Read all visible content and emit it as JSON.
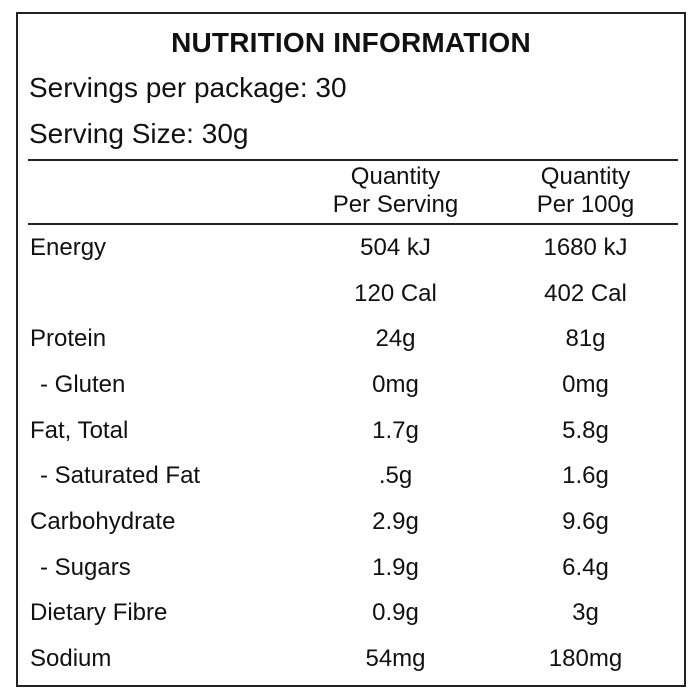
{
  "label": {
    "title": "NUTRITION INFORMATION",
    "servings_per_package": "Servings per package: 30",
    "serving_size": "Serving Size: 30g",
    "columns": [
      {
        "line1": "Quantity",
        "line2": "Per Serving"
      },
      {
        "line1": "Quantity",
        "line2": "Per 100g"
      }
    ],
    "rows": [
      {
        "name": "Energy",
        "per_serving": "504 kJ",
        "per_100g": "1680 kJ"
      },
      {
        "name": "",
        "per_serving": "120 Cal",
        "per_100g": "402 Cal"
      },
      {
        "name": "Protein",
        "per_serving": "24g",
        "per_100g": "81g"
      },
      {
        "name": " - Gluten",
        "per_serving": "0mg",
        "per_100g": "0mg"
      },
      {
        "name": "Fat, Total",
        "per_serving": "1.7g",
        "per_100g": "5.8g"
      },
      {
        "name": " - Saturated Fat",
        "per_serving": ".5g",
        "per_100g": "1.6g"
      },
      {
        "name": "Carbohydrate",
        "per_serving": "2.9g",
        "per_100g": "9.6g"
      },
      {
        "name": " - Sugars",
        "per_serving": "1.9g",
        "per_100g": "6.4g"
      },
      {
        "name": "Dietary Fibre",
        "per_serving": "0.9g",
        "per_100g": "3g"
      },
      {
        "name": "Sodium",
        "per_serving": "54mg",
        "per_100g": "180mg"
      }
    ]
  }
}
